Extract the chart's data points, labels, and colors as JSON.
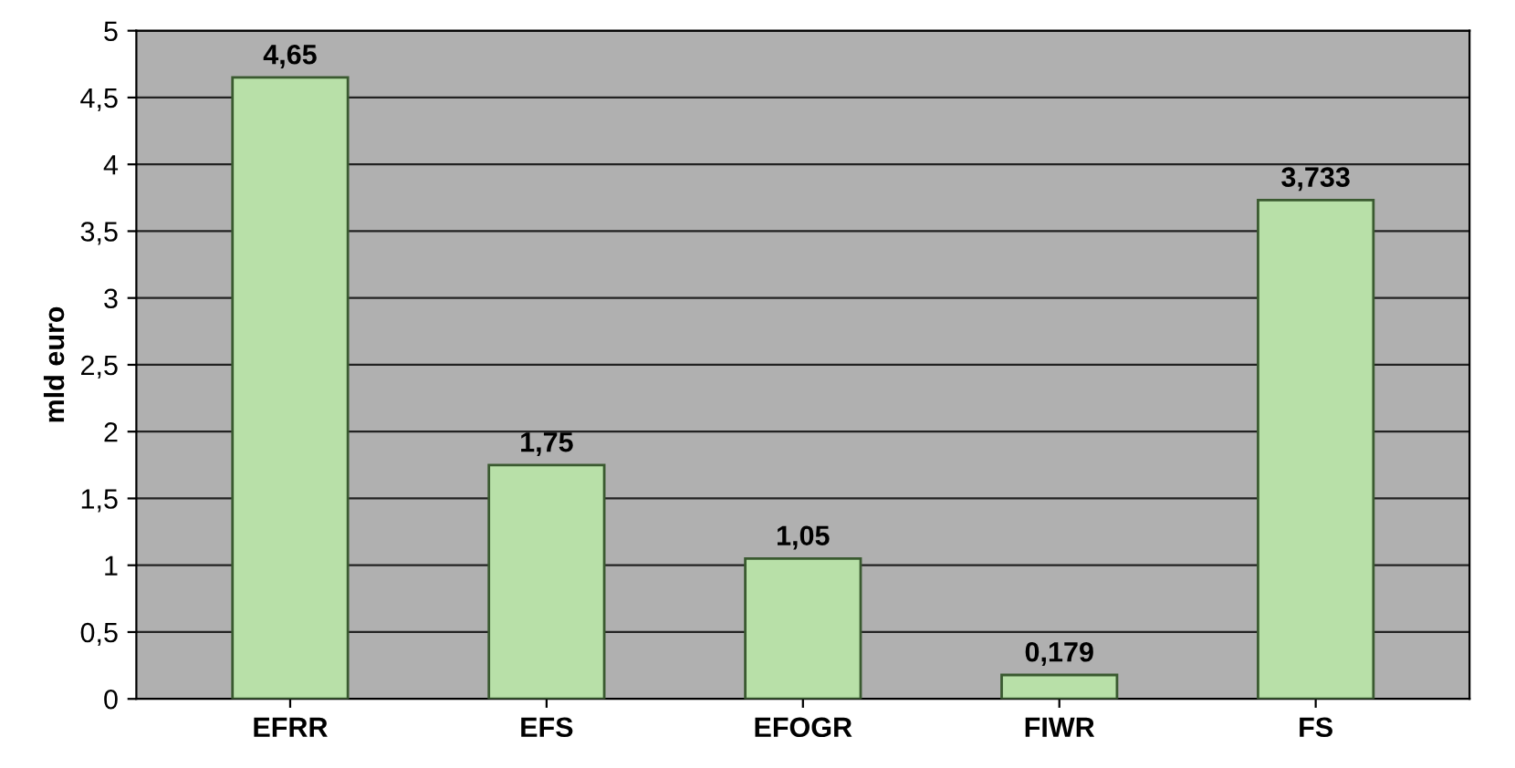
{
  "chart_data": {
    "type": "bar",
    "ylabel": "mld euro",
    "categories": [
      "EFRR",
      "EFS",
      "EFOGR",
      "FIWR",
      "FS"
    ],
    "values": [
      4.65,
      1.75,
      1.05,
      0.179,
      3.733
    ],
    "value_labels": [
      "4,65",
      "1,75",
      "1,05",
      "0,179",
      "3,733"
    ],
    "color": "#b8e0a8",
    "ylim": [
      0,
      5
    ],
    "yticks": [
      0,
      {
        "value": 0.5,
        "label": "0,5"
      },
      1,
      {
        "value": 1.5,
        "label": "1,5"
      },
      2,
      {
        "value": 2.5,
        "label": "2,5"
      },
      3,
      {
        "value": 3.5,
        "label": "3,5"
      },
      4,
      {
        "value": 4.5,
        "label": "4,5"
      },
      5
    ],
    "grid": "y"
  }
}
